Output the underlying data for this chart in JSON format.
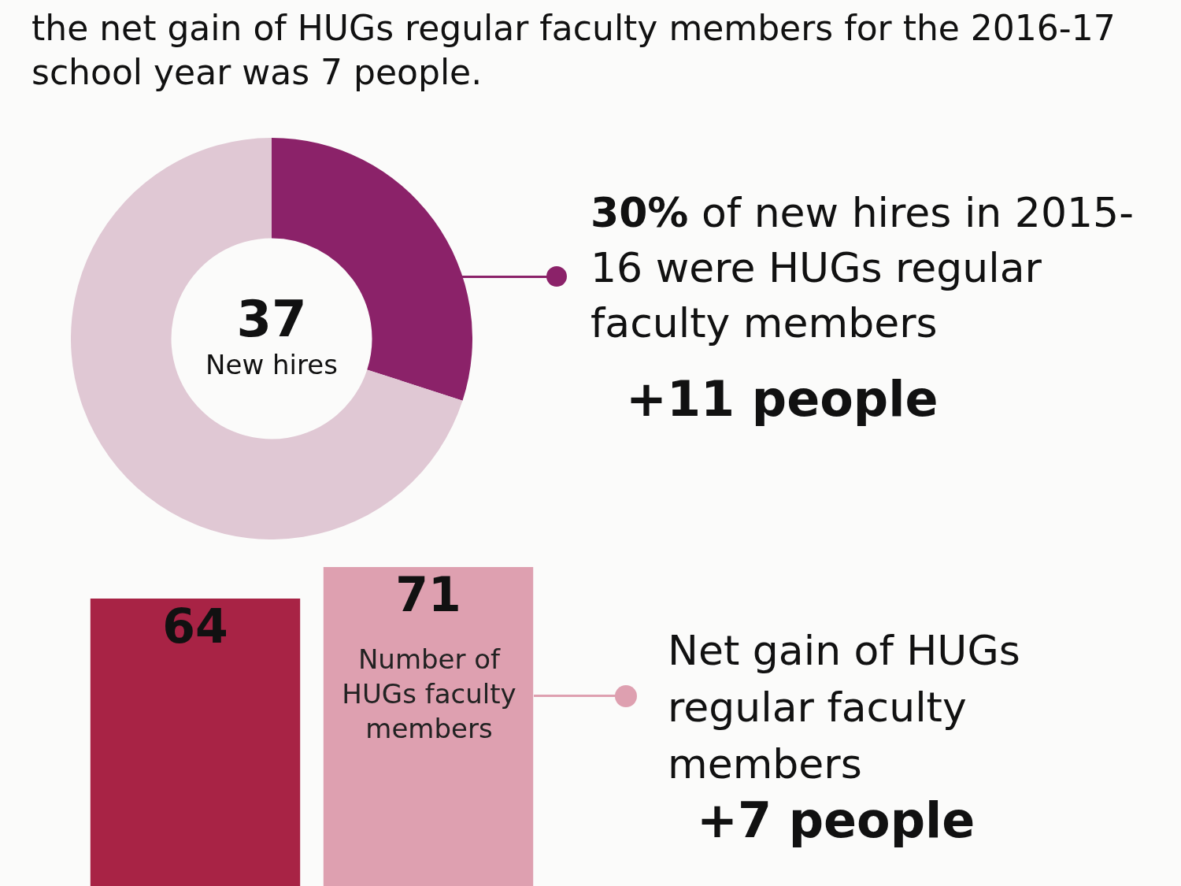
{
  "chart_data": [
    {
      "type": "donut",
      "title": "the net gain of HUGs regular faculty members for the 2016-17 school year was 7 people.",
      "categories": [
        null,
        null
      ],
      "values": [
        30,
        70
      ],
      "colors": [
        "#8b2269",
        "#e0c8d4"
      ],
      "annotations": [
        "37",
        "New hires",
        "30%",
        "of new hires in 2015-16 were HUGs regular faculty members",
        "+11 people"
      ]
    },
    {
      "type": "bar",
      "categories": [
        null,
        null
      ],
      "values": [
        64,
        71
      ],
      "colors": [
        "#a82345",
        "#dea0b0"
      ],
      "data_labels": true,
      "annotations": [
        "Number of HUGs faculty members",
        "Net gain of HUGs regular faculty members",
        "+7 people"
      ]
    }
  ]
}
